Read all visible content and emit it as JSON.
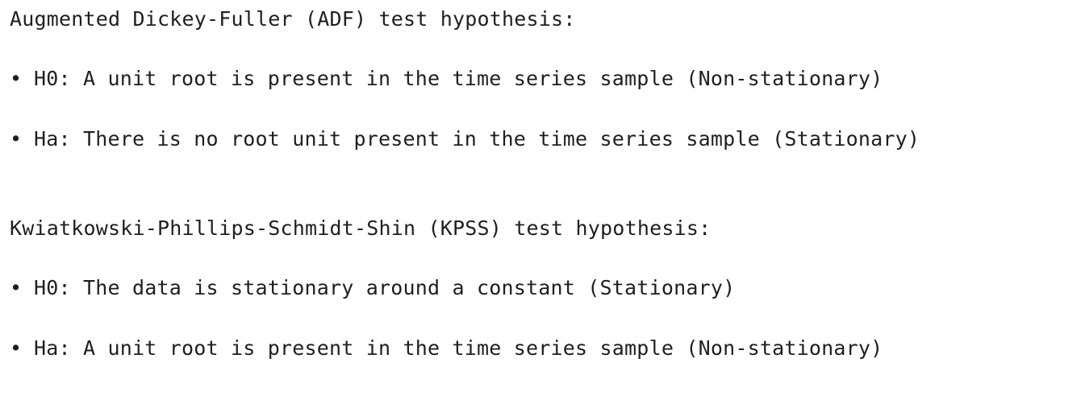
{
  "adf": {
    "heading": "Augmented Dickey-Fuller (ADF) test hypothesis:",
    "items": [
      {
        "bullet": "•",
        "text": "H0: A unit root is present in the time series sample (Non-stationary)"
      },
      {
        "bullet": "•",
        "text": "Ha: There is no root unit present in the time series sample (Stationary)"
      }
    ]
  },
  "kpss": {
    "heading": "Kwiatkowski-Phillips-Schmidt-Shin (KPSS) test hypothesis:",
    "items": [
      {
        "bullet": "•",
        "text": "H0: The data is stationary around a constant (Stationary)"
      },
      {
        "bullet": "•",
        "text": "Ha: A unit root is present in the time series sample (Non-stationary)"
      }
    ]
  }
}
